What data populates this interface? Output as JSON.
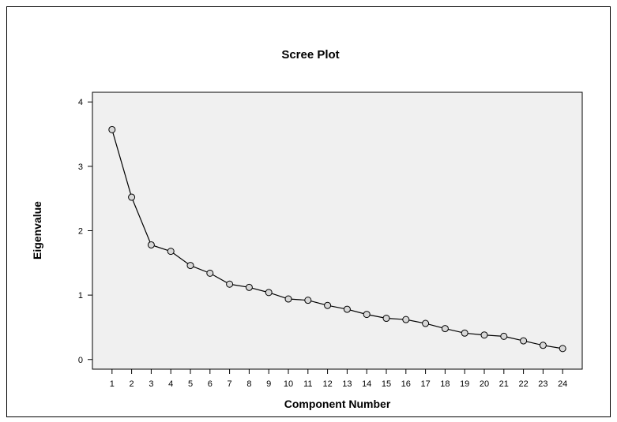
{
  "chart_data": {
    "type": "line",
    "title": "Scree Plot",
    "xlabel": "Component Number",
    "ylabel": "Eigenvalue",
    "x": [
      1,
      2,
      3,
      4,
      5,
      6,
      7,
      8,
      9,
      10,
      11,
      12,
      13,
      14,
      15,
      16,
      17,
      18,
      19,
      20,
      21,
      22,
      23,
      24
    ],
    "series": [
      {
        "values": [
          3.57,
          2.52,
          1.78,
          1.68,
          1.46,
          1.34,
          1.17,
          1.12,
          1.04,
          0.94,
          0.92,
          0.84,
          0.78,
          0.7,
          0.64,
          0.62,
          0.56,
          0.48,
          0.41,
          0.38,
          0.36,
          0.29,
          0.22,
          0.17
        ]
      }
    ],
    "xlim": [
      0,
      25
    ],
    "ylim": [
      -0.15,
      4.15
    ],
    "yticks": [
      0,
      1,
      2,
      3,
      4
    ],
    "grid": false,
    "legend": "none",
    "colors": {
      "plot_background": "#f0f0f0",
      "page_background": "#ffffff",
      "line": "#000000",
      "marker_fill": "#d8d8d8"
    }
  }
}
